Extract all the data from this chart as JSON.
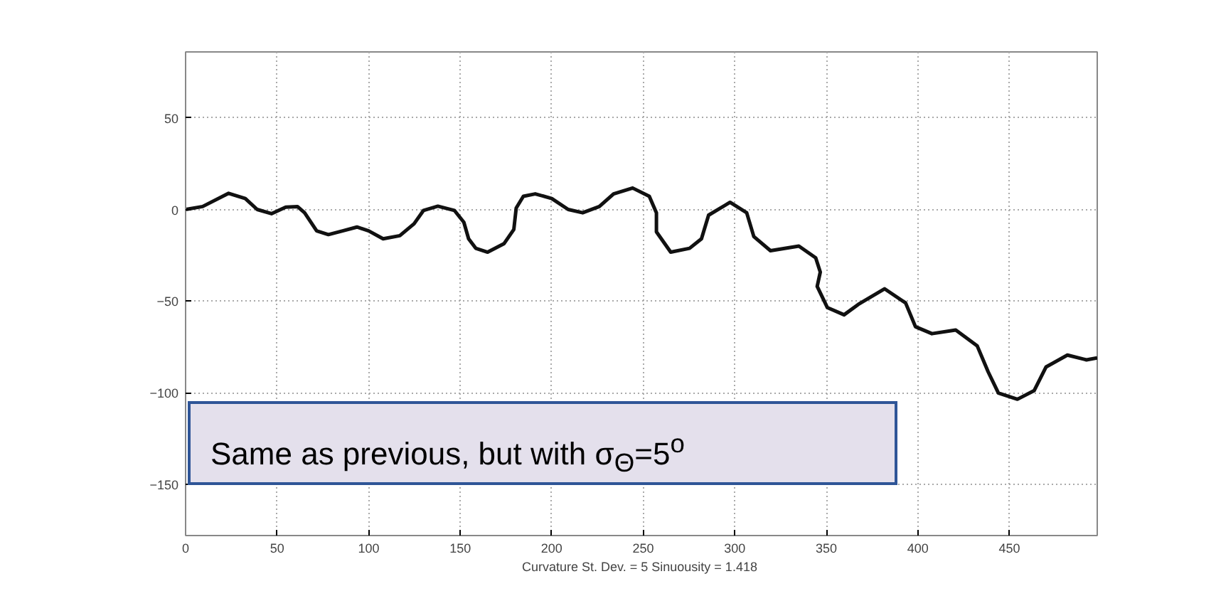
{
  "chart_data": {
    "type": "line",
    "xlabel": "Curvature St. Dev. = 5  Sinuousity = 1.418",
    "annotations": [
      "Same as previous, but with σ$_{Θ}$=5$^{o}$"
    ],
    "xlim": [
      0,
      498
    ],
    "ylim": [
      -178,
      86
    ],
    "xticks": [
      0,
      50,
      100,
      150,
      200,
      250,
      300,
      350,
      400,
      450
    ],
    "yticks": [
      -150,
      -100,
      -50,
      0,
      50
    ],
    "grid": true,
    "line_style": "solid",
    "marker": "none",
    "series": [
      {
        "color": "#111111",
        "x": [
          0,
          9.3,
          23.5,
          32.6,
          39.1,
          46.9,
          54.7,
          61.1,
          65,
          71.6,
          78,
          85.8,
          93.6,
          100,
          107.9,
          117,
          124.8,
          130,
          137.8,
          146.8,
          152,
          154.6,
          158.5,
          165,
          174,
          179.3,
          180.6,
          184.5,
          191,
          200,
          209,
          216.9,
          226,
          233.8,
          244.2,
          253.3,
          257.2,
          257.2,
          265,
          275.3,
          281.8,
          285.7,
          297.4,
          306.5,
          310.4,
          319.5,
          335,
          344.2,
          346.7,
          345,
          350.6,
          359.7,
          367.5,
          381.8,
          393.3,
          398.7,
          407.7,
          420.7,
          432.4,
          438.4,
          444,
          454.4,
          463.5,
          470,
          481.7,
          492.1,
          498
        ],
        "values": [
          0,
          1.6,
          8.8,
          6,
          0,
          -2.3,
          1.3,
          1.6,
          -1.8,
          -11.7,
          -13.7,
          -11.7,
          -9.6,
          -11.7,
          -16,
          -14.3,
          -7.8,
          -0.5,
          1.8,
          -0.5,
          -7,
          -16,
          -21.2,
          -23.3,
          -18.6,
          -10.9,
          0.8,
          7.2,
          8.5,
          6,
          0,
          -1.8,
          1.6,
          8.5,
          11.7,
          7.2,
          -1.8,
          -12.2,
          -23.3,
          -21.2,
          -16,
          -3.1,
          3.9,
          -1.8,
          -14.8,
          -22.5,
          -20,
          -26.4,
          -34.2,
          -42,
          -53.6,
          -57.5,
          -51.8,
          -43.3,
          -51,
          -64,
          -67.8,
          -65.8,
          -74.4,
          -88.6,
          -100.2,
          -103.6,
          -98.9,
          -86,
          -79.5,
          -82.1,
          -81
        ]
      }
    ]
  }
}
